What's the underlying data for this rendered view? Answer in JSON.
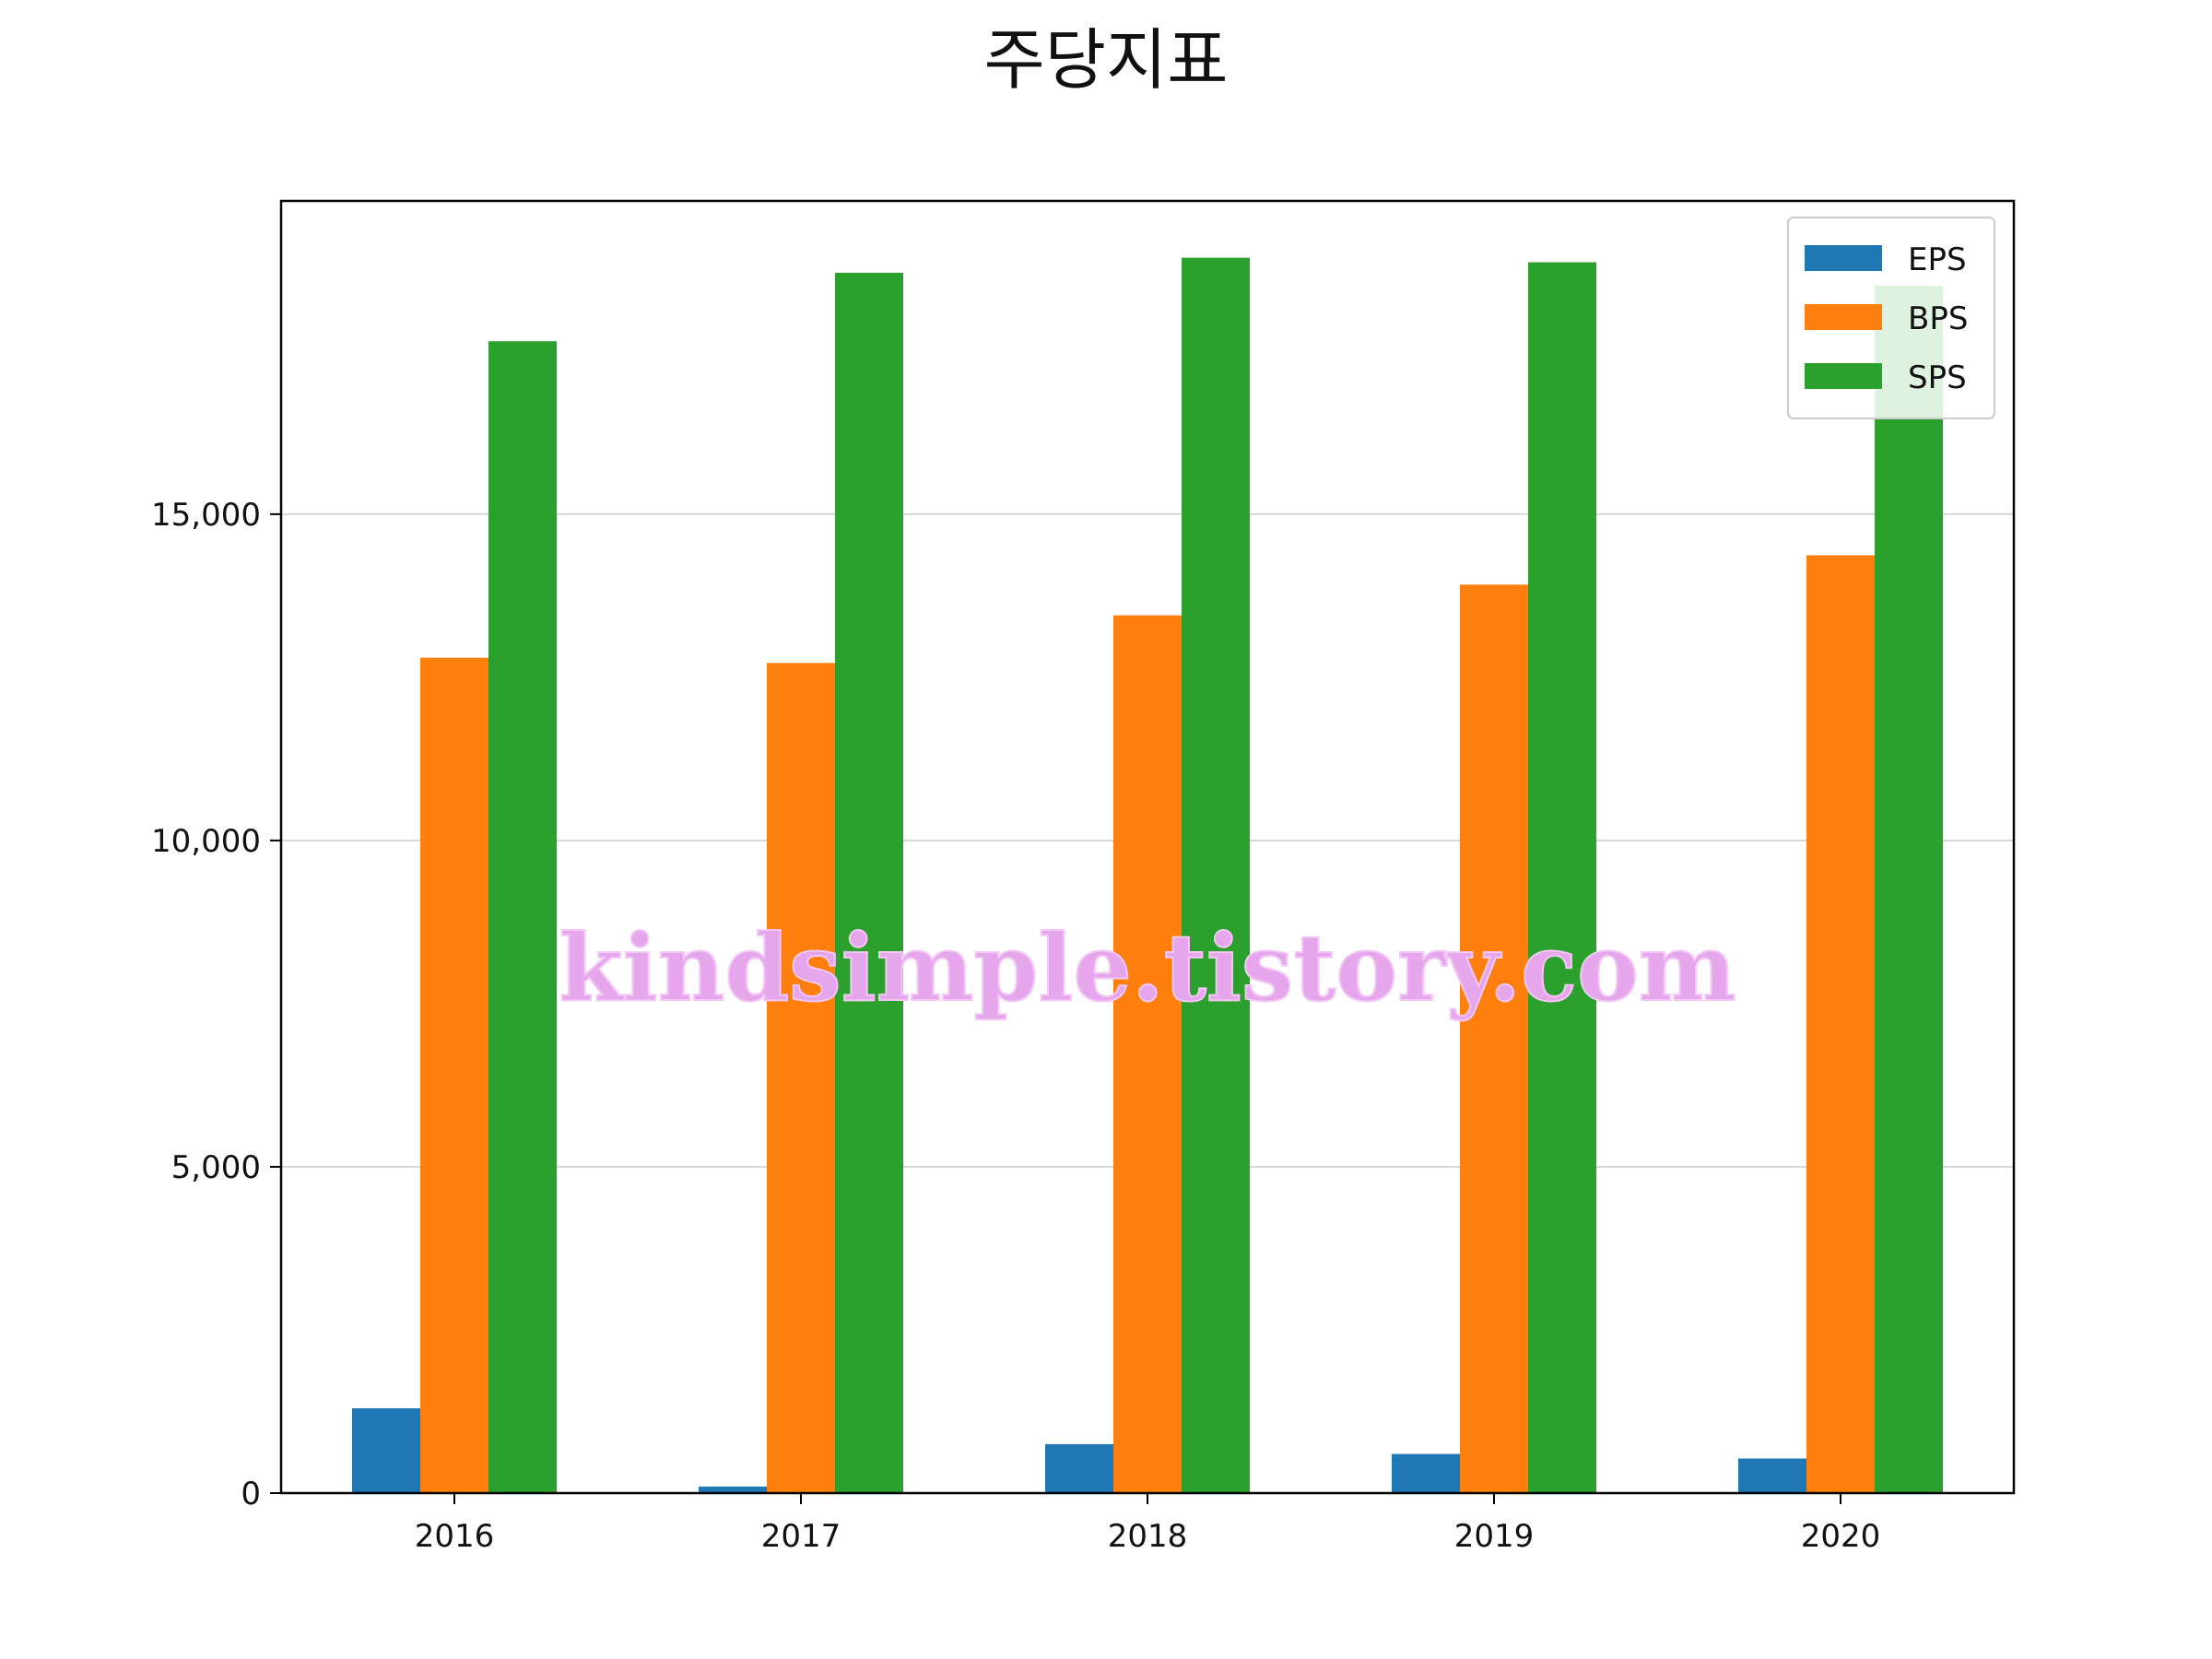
{
  "chart_data": {
    "type": "bar",
    "title": "주당지표",
    "xlabel": "",
    "ylabel": "",
    "categories": [
      "2016",
      "2017",
      "2018",
      "2019",
      "2020"
    ],
    "series": [
      {
        "name": "EPS",
        "color": "#1f77b4",
        "values": [
          1300,
          100,
          750,
          600,
          530
        ]
      },
      {
        "name": "BPS",
        "color": "#ff7f0e",
        "values": [
          12800,
          12720,
          13450,
          13920,
          14370
        ]
      },
      {
        "name": "SPS",
        "color": "#2ca02c",
        "values": [
          17650,
          18700,
          18930,
          18860,
          18500
        ]
      }
    ],
    "ylim": [
      0,
      19800
    ],
    "yticks": [
      0,
      5000,
      10000,
      15000
    ],
    "ytick_labels": [
      "0",
      "5,000",
      "10,000",
      "15,000"
    ],
    "grid": "y",
    "legend": "top-right"
  },
  "watermark": "kindsimple.tistory.com"
}
